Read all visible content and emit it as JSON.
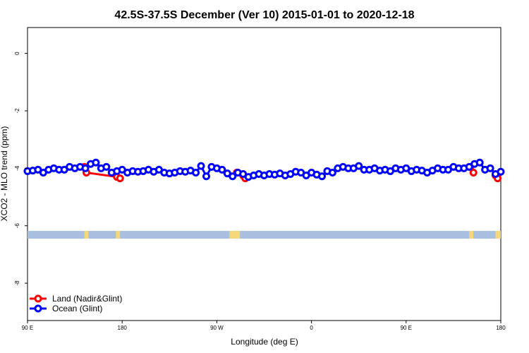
{
  "chart_data": {
    "type": "line",
    "title": "42.5S-37.5S December (Ver 10)   2015-01-01 to 2020-12-18",
    "xlabel": "Longitude (deg E)",
    "ylabel": "XCO2 - MLO trend (ppm)",
    "x_range_deg": [
      90,
      450
    ],
    "ylim": [
      -9.3,
      0.9
    ],
    "x_ticks": [
      {
        "value": 90,
        "label": "90 E"
      },
      {
        "value": 180,
        "label": "180"
      },
      {
        "value": 270,
        "label": "90 W"
      },
      {
        "value": 360,
        "label": "0"
      },
      {
        "value": 450,
        "label": "90 E"
      },
      {
        "value": 540,
        "label": "180"
      }
    ],
    "y_ticks": [
      {
        "value": 0,
        "label": "0"
      },
      {
        "value": -2,
        "label": "-2"
      },
      {
        "value": -4,
        "label": "-4"
      },
      {
        "value": -6,
        "label": "-6"
      },
      {
        "value": -8,
        "label": "-8"
      }
    ],
    "x_axis_range": [
      90,
      540
    ],
    "series": [
      {
        "name": "Land (Nadir&Glint)",
        "color": "#ff0000",
        "segments": [
          [
            [
              144,
              -3.95
            ],
            [
              146,
              -4.15
            ],
            [
              175,
              -4.3
            ],
            [
              178,
              -4.35
            ]
          ],
          [
            [
              289,
              -4.15
            ],
            [
              295,
              -4.25
            ],
            [
              297,
              -4.35
            ]
          ],
          [
            [
              511,
              -3.95
            ],
            [
              514,
              -4.15
            ]
          ],
          [
            [
              535,
              -4.25
            ],
            [
              537,
              -4.35
            ]
          ]
        ]
      },
      {
        "name": "Ocean (Glint)",
        "color": "#0000ff",
        "x": [
          90,
          95,
          100,
          105,
          110,
          115,
          120,
          125,
          130,
          135,
          140,
          145,
          150,
          155,
          160,
          165,
          170,
          175,
          180,
          185,
          190,
          195,
          200,
          205,
          210,
          215,
          220,
          225,
          230,
          235,
          240,
          245,
          250,
          255,
          260,
          265,
          270,
          275,
          280,
          285,
          290,
          295,
          300,
          305,
          310,
          315,
          320,
          325,
          330,
          335,
          340,
          345,
          350,
          355,
          360,
          365,
          370,
          375,
          380,
          385,
          390,
          395,
          400,
          405,
          410,
          415,
          420,
          425,
          430,
          435,
          440,
          445,
          450,
          455,
          460,
          465,
          470,
          475,
          480,
          485,
          490,
          495,
          500,
          505,
          510,
          515,
          520,
          525,
          530,
          535,
          540
        ],
        "values": [
          -4.1,
          -4.08,
          -4.05,
          -4.15,
          -4.05,
          -4.0,
          -4.05,
          -4.05,
          -3.95,
          -4.0,
          -3.95,
          -4.0,
          -3.85,
          -3.8,
          -4.0,
          -3.95,
          -4.15,
          -4.1,
          -4.05,
          -4.15,
          -4.1,
          -4.12,
          -4.1,
          -4.05,
          -4.12,
          -4.05,
          -4.15,
          -4.18,
          -4.15,
          -4.1,
          -4.12,
          -4.08,
          -4.15,
          -3.92,
          -4.28,
          -3.95,
          -4.0,
          -4.05,
          -4.18,
          -4.28,
          -4.15,
          -4.2,
          -4.3,
          -4.25,
          -4.2,
          -4.25,
          -4.2,
          -4.22,
          -4.18,
          -4.25,
          -4.2,
          -4.12,
          -4.15,
          -4.25,
          -4.15,
          -4.22,
          -4.28,
          -4.1,
          -4.15,
          -4.0,
          -3.95,
          -4.0,
          -4.0,
          -3.92,
          -4.05,
          -4.05,
          -4.0,
          -4.08,
          -4.05,
          -4.1,
          -4.0,
          -4.05,
          -4.0,
          -4.1,
          -4.05,
          -4.08,
          -4.15,
          -4.08,
          -4.0,
          -4.05,
          -4.05,
          -3.95,
          -4.0,
          -4.0,
          -3.95,
          -3.85,
          -3.8,
          -4.05,
          -4.0,
          -4.2,
          -4.12
        ]
      }
    ],
    "land_mask_band": {
      "y_range": [
        -6.45,
        -6.18
      ],
      "ocean_color": "#a8bfe0",
      "land_color": "#f4d77a",
      "land_x_ranges": [
        [
          144,
          148
        ],
        [
          174,
          178
        ],
        [
          282,
          292
        ],
        [
          510,
          514
        ],
        [
          535,
          540
        ]
      ]
    },
    "legend": {
      "placement": "bottom-left",
      "entries": [
        {
          "label": "Land (Nadir&Glint)",
          "color": "#ff0000"
        },
        {
          "label": "Ocean (Glint)",
          "color": "#0000ff"
        }
      ]
    },
    "grid": false
  }
}
